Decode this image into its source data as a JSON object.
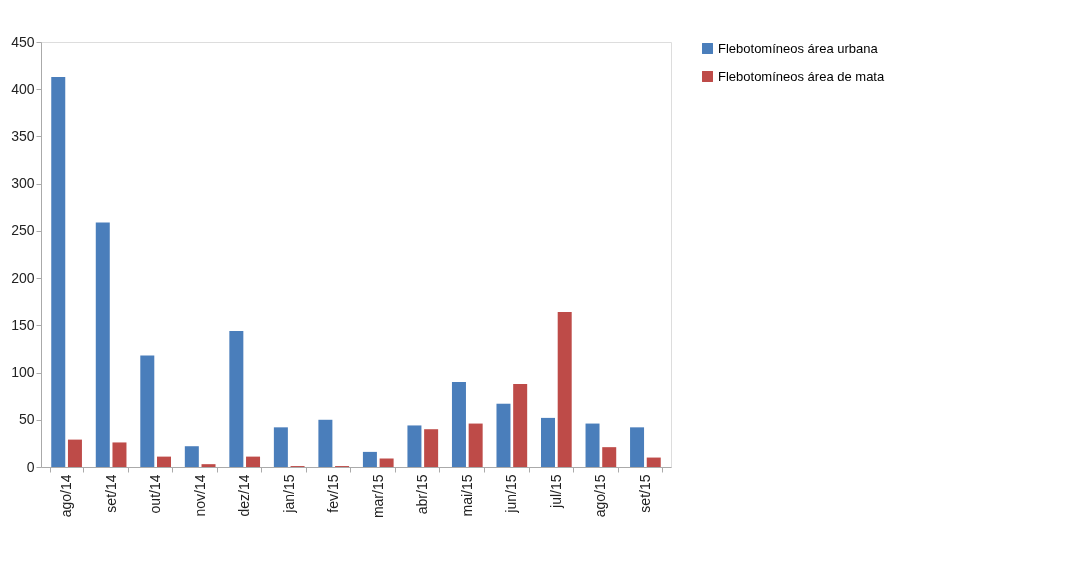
{
  "chart_data": {
    "type": "bar",
    "categories": [
      "ago/14",
      "set/14",
      "out/14",
      "nov/14",
      "dez/14",
      "jan/15",
      "fev/15",
      "mar/15",
      "abr/15",
      "mai/15",
      "jun/15",
      "jul/15",
      "ago/15",
      "set/15"
    ],
    "series": [
      {
        "name": "Flebotomíneos área urbana",
        "color": "#4a7ebb",
        "values": [
          413,
          259,
          118,
          22,
          144,
          42,
          50,
          16,
          44,
          90,
          67,
          52,
          46,
          42
        ]
      },
      {
        "name": "Flebotomíneos área de mata",
        "color": "#be4b48",
        "values": [
          29,
          26,
          11,
          3,
          11,
          1,
          1,
          9,
          40,
          46,
          88,
          164,
          21,
          10
        ]
      }
    ],
    "ylim": [
      0,
      450
    ],
    "yticks": [
      0,
      50,
      100,
      150,
      200,
      250,
      300,
      350,
      400,
      450
    ],
    "grid": false,
    "legend": "right"
  }
}
